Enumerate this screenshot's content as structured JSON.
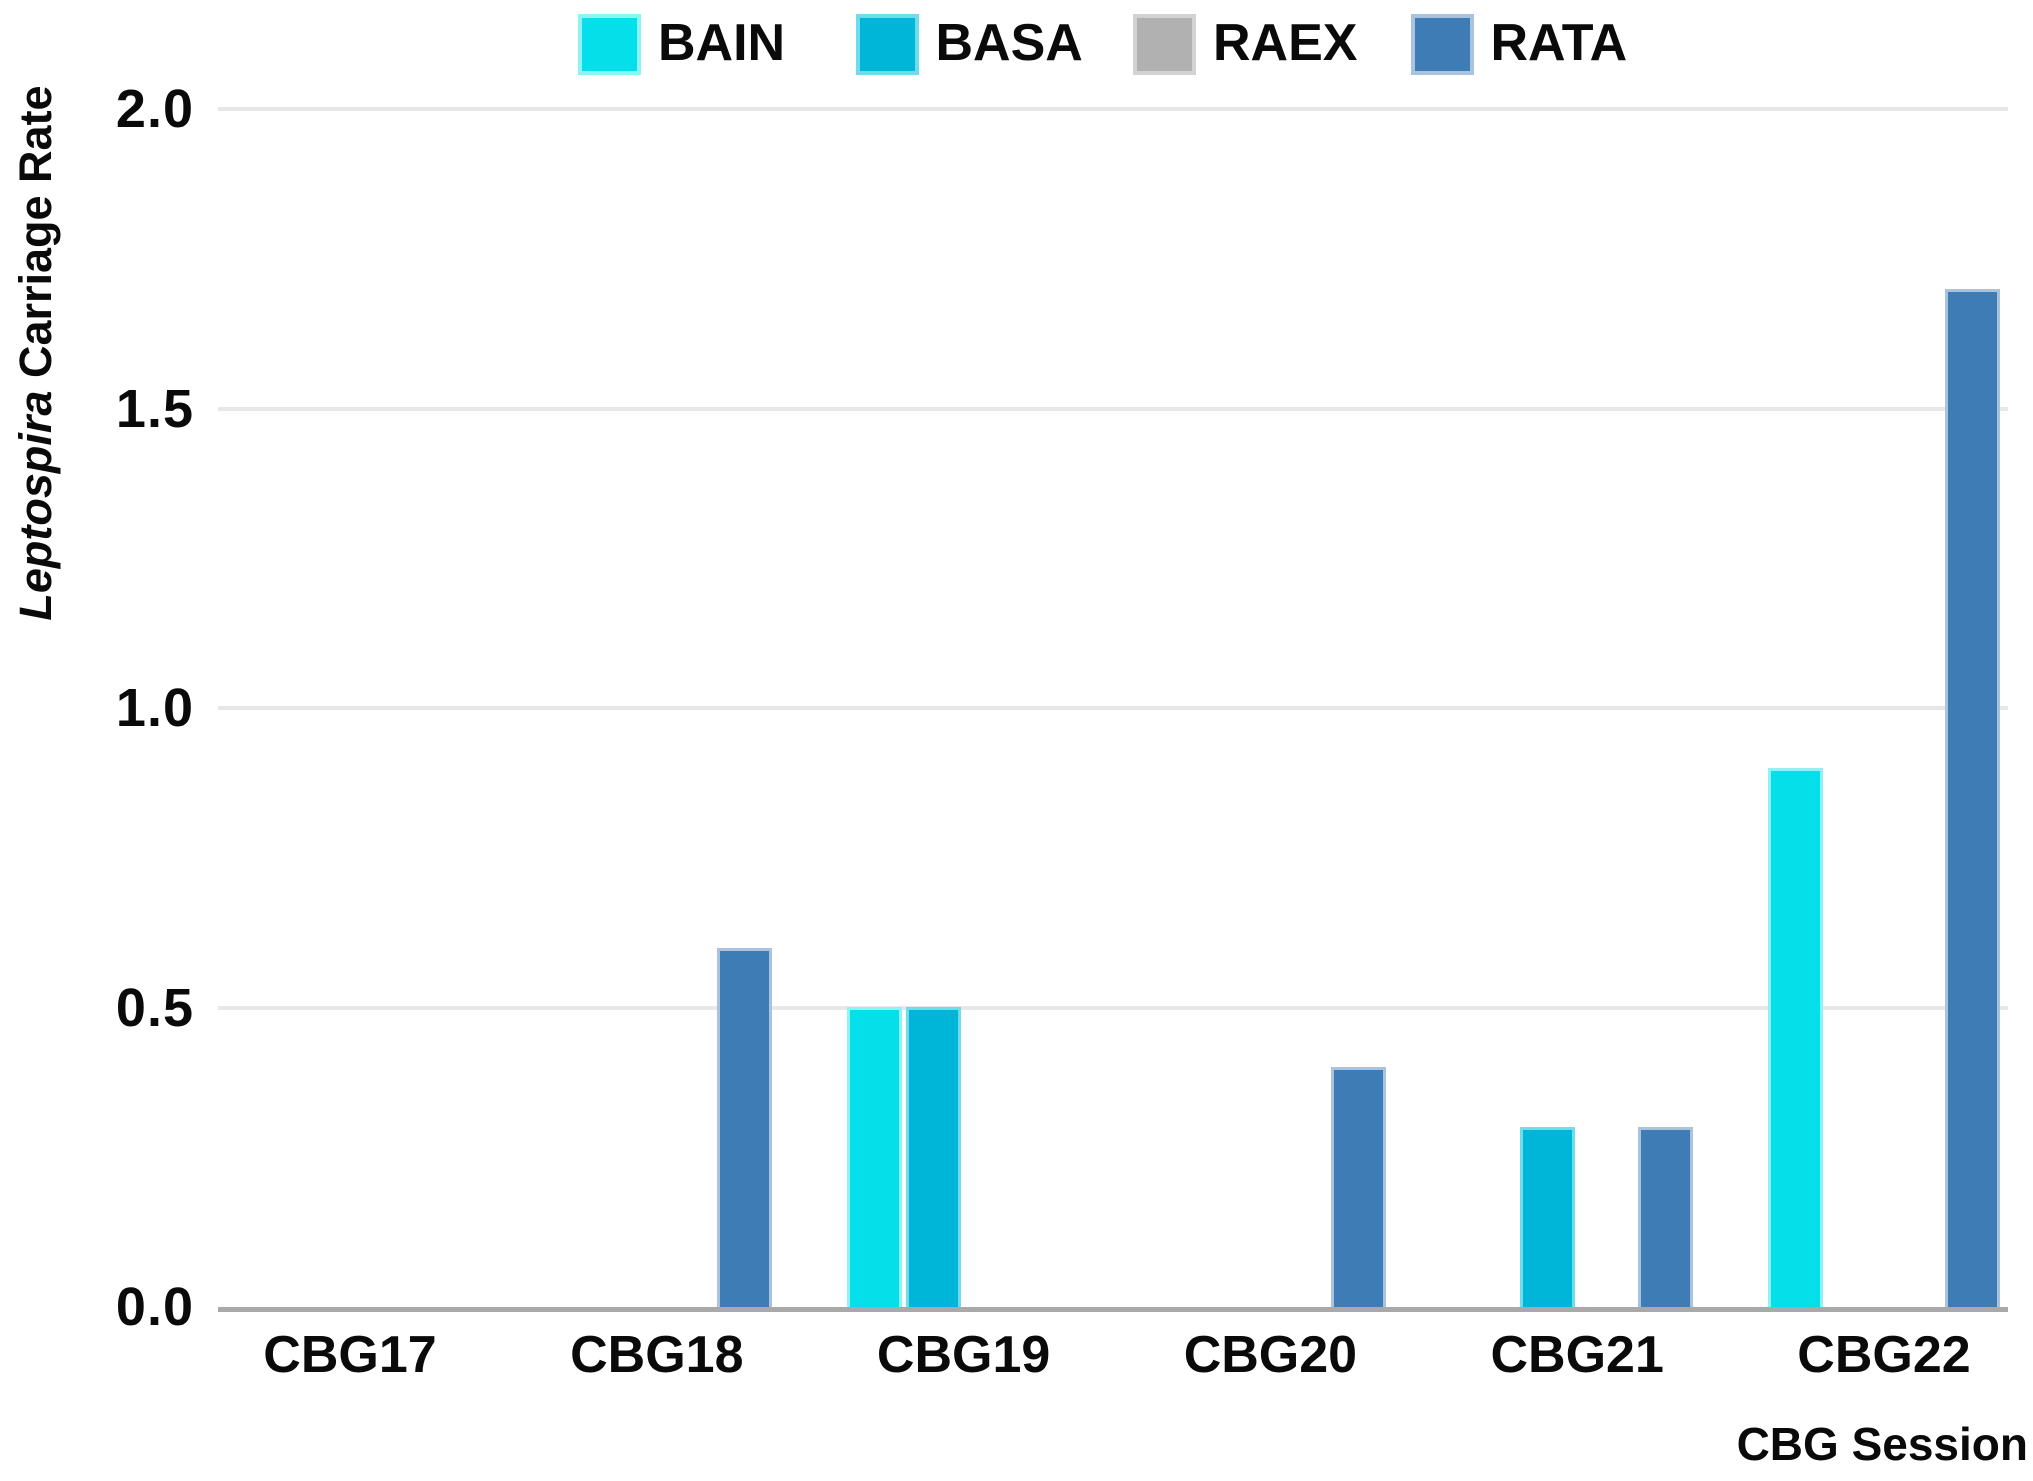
{
  "chart_data": {
    "type": "bar",
    "title": "",
    "categories": [
      "CBG17",
      "CBG18",
      "CBG19",
      "CBG20",
      "CBG21",
      "CBG22"
    ],
    "series": [
      {
        "name": "BAIN",
        "color": "#05DFE9",
        "edge_color": "#8FF2F5",
        "values": [
          0,
          0,
          0.5,
          0,
          0,
          0.9
        ]
      },
      {
        "name": "BASA",
        "color": "#00B6D8",
        "edge_color": "#6FDCEC",
        "values": [
          0,
          0,
          0.5,
          0,
          0.3,
          0
        ]
      },
      {
        "name": "RAEX",
        "color": "#B1B1B1",
        "edge_color": "#D2D2D2",
        "values": [
          0,
          0,
          0,
          0,
          0,
          0
        ]
      },
      {
        "name": "RATA",
        "color": "#3E7CB6",
        "edge_color": "#A9C3DE",
        "values": [
          0,
          0.6,
          0,
          0.4,
          0.3,
          1.7
        ]
      }
    ],
    "xlabel": "CBG Session",
    "ylabel_plain": "Leptospira Carriage Rate",
    "ylabel_parts": [
      {
        "text": "Leptospira",
        "italic": true
      },
      {
        "text": " Carriage Rate",
        "italic": false
      }
    ],
    "yticks": [
      0,
      0.5,
      1,
      1.5,
      2
    ],
    "ytick_labels": [
      "0.0",
      "0.5",
      "1.0",
      "1.5",
      "2.0"
    ],
    "ylim": [
      0,
      2
    ],
    "grid": true,
    "legend_position": "top",
    "colors": {
      "grid": "#E7E7E7",
      "axis": "#A9A9A9",
      "text": "#0A0A0A",
      "background": "#FFFFFF"
    }
  }
}
